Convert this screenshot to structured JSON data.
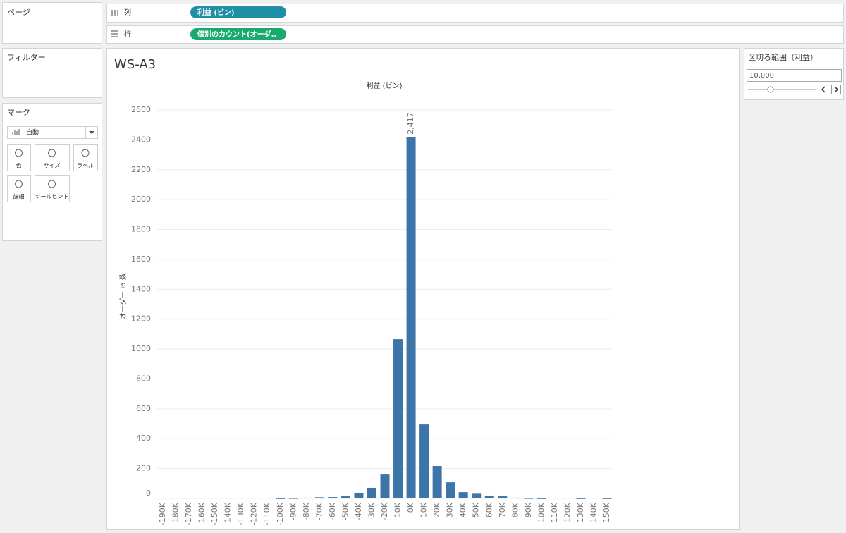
{
  "left_panel": {
    "pages_title": "ページ",
    "filters_title": "フィルター",
    "marks_title": "マーク",
    "mark_type": "自動",
    "buttons": [
      "色",
      "サイズ",
      "ラベル",
      "詳細",
      "ツールヒント"
    ]
  },
  "shelves": {
    "columns_label": "列",
    "columns_pill": "利益 (ビン)",
    "rows_label": "行",
    "rows_pill": "個別のカウント(オーダ.."
  },
  "parameter": {
    "title": "区切る範囲（利益）",
    "value": "10,000"
  },
  "chart_data": {
    "type": "bar",
    "title": "WS-A3",
    "x_label": "利益 (ビン)",
    "y_label": "オーダー Id 数",
    "categories": [
      "-190K",
      "-180K",
      "-170K",
      "-160K",
      "-150K",
      "-140K",
      "-130K",
      "-120K",
      "-110K",
      "-100K",
      "-90K",
      "-80K",
      "-70K",
      "-60K",
      "-50K",
      "-40K",
      "-30K",
      "-20K",
      "-10K",
      "0K",
      "10K",
      "20K",
      "30K",
      "40K",
      "50K",
      "60K",
      "70K",
      "80K",
      "90K",
      "100K",
      "110K",
      "120K",
      "130K",
      "140K",
      "150K"
    ],
    "values": [
      null,
      null,
      null,
      null,
      null,
      null,
      null,
      null,
      null,
      1,
      2,
      5,
      8,
      9,
      14,
      38,
      71,
      160,
      1066,
      2417,
      495,
      217,
      108,
      42,
      36,
      19,
      14,
      5,
      2,
      1,
      null,
      null,
      1,
      null,
      1
    ],
    "value_labels": [
      null,
      null,
      null,
      null,
      null,
      null,
      null,
      null,
      null,
      null,
      null,
      null,
      null,
      null,
      null,
      null,
      null,
      null,
      null,
      "2,417",
      null,
      null,
      null,
      null,
      null,
      null,
      null,
      null,
      null,
      null,
      null,
      null,
      null,
      null,
      null
    ],
    "color": "#3e75a8",
    "ylim": [
      0,
      2600
    ],
    "yticks": [
      0,
      200,
      400,
      600,
      800,
      1000,
      1200,
      1400,
      1600,
      1800,
      2000,
      2200,
      2400,
      2600
    ],
    "grid": true
  }
}
